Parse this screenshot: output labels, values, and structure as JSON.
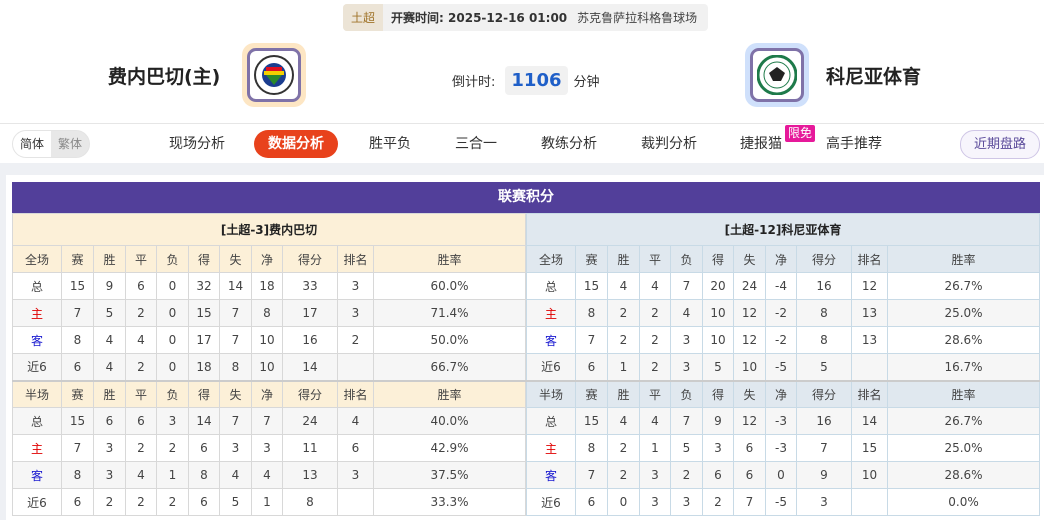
{
  "match": {
    "league": "土超",
    "time_label": "开赛时间:",
    "time": "2025-12-16 01:00",
    "venue": "苏克鲁萨拉科格鲁球场"
  },
  "home": {
    "name": "费内巴切(主)",
    "logo": "fenerbahce-crest",
    "color": "#fde6c4"
  },
  "away": {
    "name": "科尼亚体育",
    "logo": "konyaspor-crest",
    "color": "#cfe0fb"
  },
  "countdown": {
    "label": "倒计时:",
    "value": "1106",
    "unit": "分钟"
  },
  "lang": {
    "simplified": "简体",
    "traditional": "繁体"
  },
  "nav": {
    "items": [
      "现场分析",
      "数据分析",
      "胜平负",
      "三合一",
      "教练分析",
      "裁判分析",
      "捷报猫",
      "高手推荐"
    ],
    "active": 1,
    "free_badge": "限免",
    "recent": "近期盘路"
  },
  "standings": {
    "title": "联赛积分",
    "tables": [
      {
        "caption": "[土超-3]费内巴切",
        "full": {
          "header": [
            "全场",
            "赛",
            "胜",
            "平",
            "负",
            "得",
            "失",
            "净",
            "得分",
            "排名",
            "胜率"
          ],
          "rows": [
            [
              "总",
              "15",
              "9",
              "6",
              "0",
              "32",
              "14",
              "18",
              "33",
              "3",
              "60.0%"
            ],
            [
              "主",
              "7",
              "5",
              "2",
              "0",
              "15",
              "7",
              "8",
              "17",
              "3",
              "71.4%"
            ],
            [
              "客",
              "8",
              "4",
              "4",
              "0",
              "17",
              "7",
              "10",
              "16",
              "2",
              "50.0%"
            ],
            [
              "近6",
              "6",
              "4",
              "2",
              "0",
              "18",
              "8",
              "10",
              "14",
              "",
              "66.7%"
            ]
          ]
        },
        "half": {
          "header": [
            "半场",
            "赛",
            "胜",
            "平",
            "负",
            "得",
            "失",
            "净",
            "得分",
            "排名",
            "胜率"
          ],
          "rows": [
            [
              "总",
              "15",
              "6",
              "6",
              "3",
              "14",
              "7",
              "7",
              "24",
              "4",
              "40.0%"
            ],
            [
              "主",
              "7",
              "3",
              "2",
              "2",
              "6",
              "3",
              "3",
              "11",
              "6",
              "42.9%"
            ],
            [
              "客",
              "8",
              "3",
              "4",
              "1",
              "8",
              "4",
              "4",
              "13",
              "3",
              "37.5%"
            ],
            [
              "近6",
              "6",
              "2",
              "2",
              "2",
              "6",
              "5",
              "1",
              "8",
              "",
              "33.3%"
            ]
          ]
        }
      },
      {
        "caption": "[土超-12]科尼亚体育",
        "full": {
          "header": [
            "全场",
            "赛",
            "胜",
            "平",
            "负",
            "得",
            "失",
            "净",
            "得分",
            "排名",
            "胜率"
          ],
          "rows": [
            [
              "总",
              "15",
              "4",
              "4",
              "7",
              "20",
              "24",
              "-4",
              "16",
              "12",
              "26.7%"
            ],
            [
              "主",
              "8",
              "2",
              "2",
              "4",
              "10",
              "12",
              "-2",
              "8",
              "13",
              "25.0%"
            ],
            [
              "客",
              "7",
              "2",
              "2",
              "3",
              "10",
              "12",
              "-2",
              "8",
              "13",
              "28.6%"
            ],
            [
              "近6",
              "6",
              "1",
              "2",
              "3",
              "5",
              "10",
              "-5",
              "5",
              "",
              "16.7%"
            ]
          ]
        },
        "half": {
          "header": [
            "半场",
            "赛",
            "胜",
            "平",
            "负",
            "得",
            "失",
            "净",
            "得分",
            "排名",
            "胜率"
          ],
          "rows": [
            [
              "总",
              "15",
              "4",
              "4",
              "7",
              "9",
              "12",
              "-3",
              "16",
              "14",
              "26.7%"
            ],
            [
              "主",
              "8",
              "2",
              "1",
              "5",
              "3",
              "6",
              "-3",
              "7",
              "15",
              "25.0%"
            ],
            [
              "客",
              "7",
              "2",
              "3",
              "2",
              "6",
              "6",
              "0",
              "9",
              "10",
              "28.6%"
            ],
            [
              "近6",
              "6",
              "0",
              "3",
              "3",
              "2",
              "7",
              "-5",
              "3",
              "",
              "0.0%"
            ]
          ]
        }
      }
    ]
  }
}
